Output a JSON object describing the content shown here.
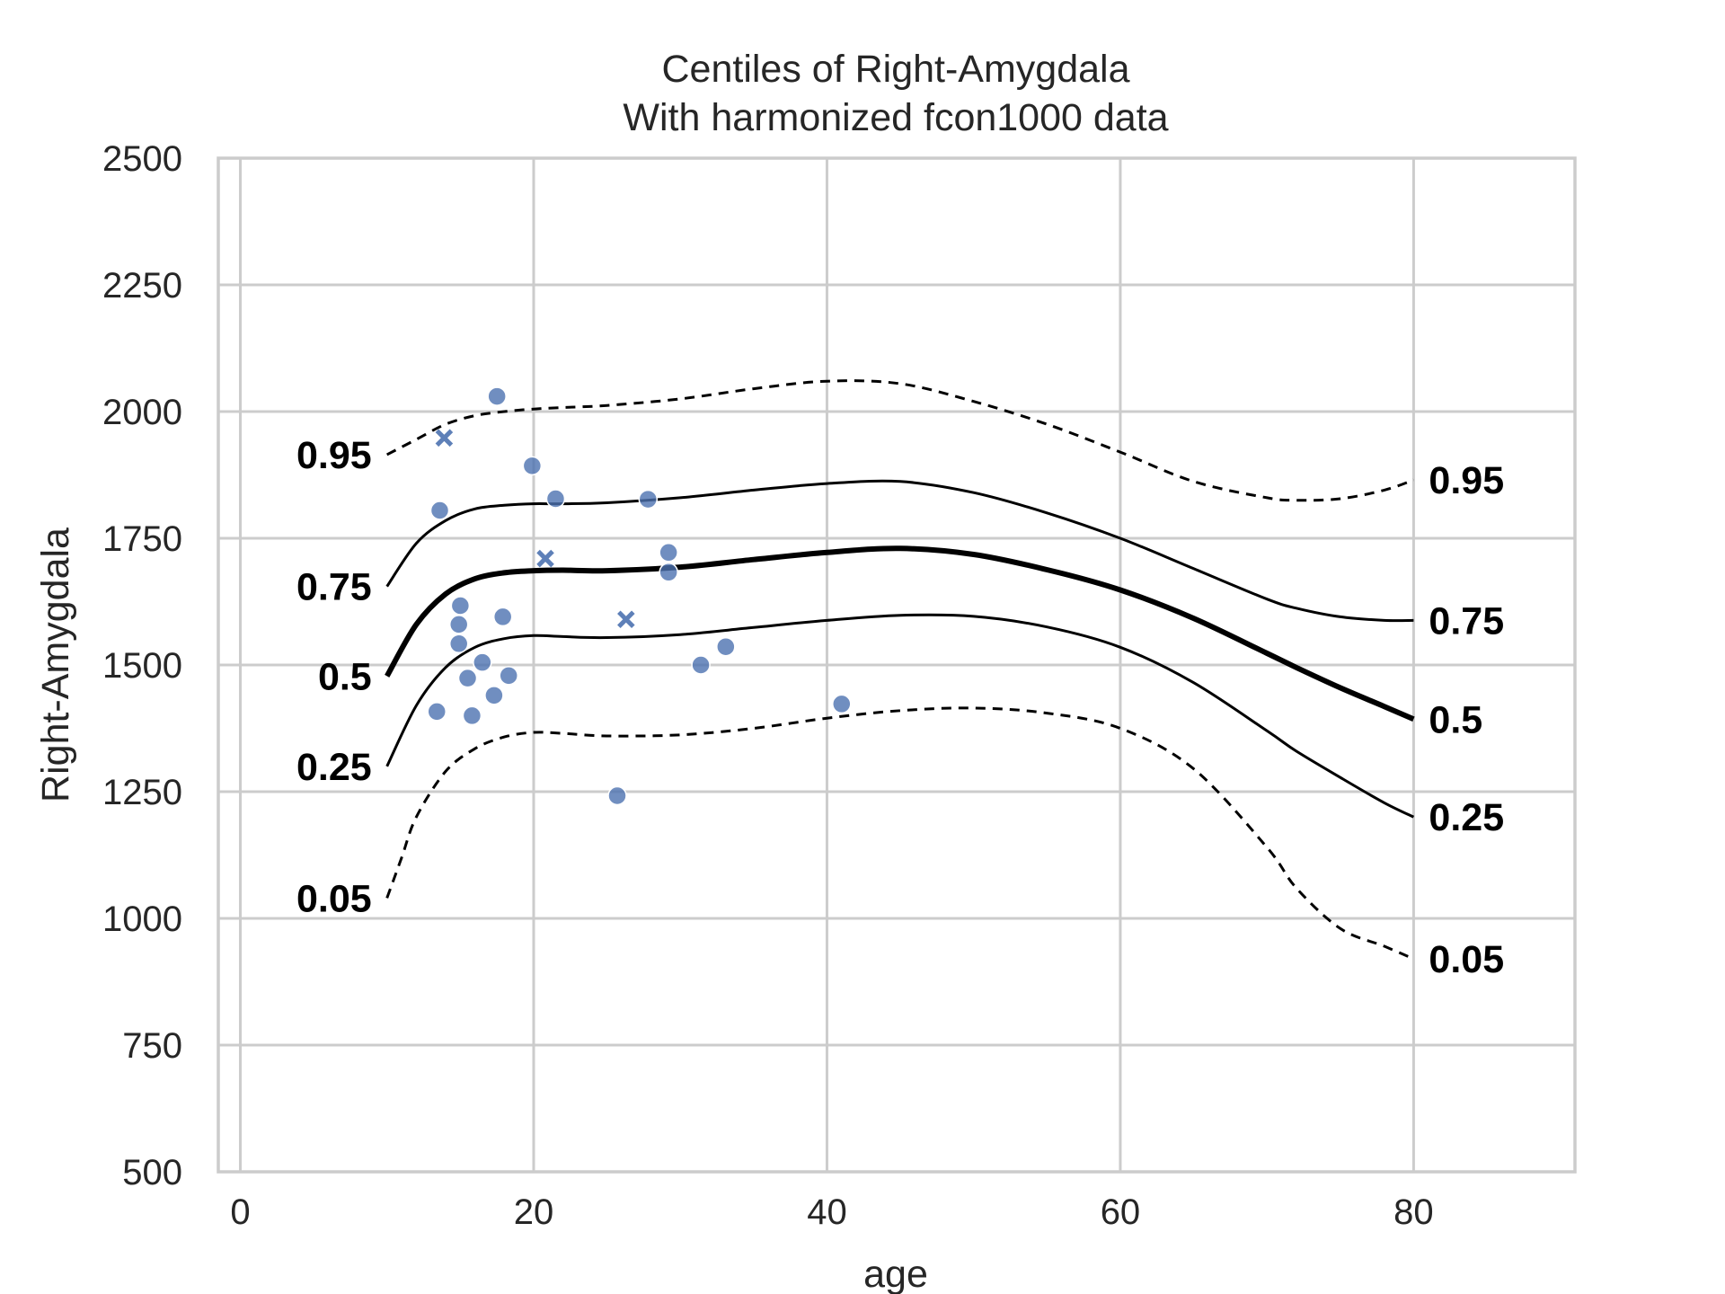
{
  "chart_data": {
    "type": "scatter",
    "title": "Centiles of Right-Amygdala",
    "subtitle": "With harmonized fcon1000 data",
    "xlabel": "age",
    "ylabel": "Right-Amygdala",
    "xlim": [
      -1.5,
      91
    ],
    "ylim": [
      500,
      2500
    ],
    "x_ticks": [
      "0",
      "20",
      "40",
      "60",
      "80"
    ],
    "x_tick_values": [
      0,
      20,
      40,
      60,
      80
    ],
    "y_ticks": [
      "500",
      "750",
      "1000",
      "1250",
      "1500",
      "1750",
      "2000",
      "2250",
      "2500"
    ],
    "y_tick_values": [
      500,
      750,
      1000,
      1250,
      1500,
      1750,
      2000,
      2250,
      2500
    ],
    "grid": true,
    "point_color": "#4c72b0",
    "line_color": "#000000",
    "centiles": [
      {
        "label": "0.95",
        "style": "dashed",
        "x": [
          10,
          12,
          14,
          16,
          18,
          20,
          22,
          25,
          30,
          35,
          40,
          45,
          50,
          55,
          60,
          65,
          70,
          72,
          75,
          78,
          80
        ],
        "y": [
          1915,
          1945,
          1975,
          1992,
          2000,
          2005,
          2008,
          2012,
          2025,
          2045,
          2060,
          2055,
          2020,
          1975,
          1920,
          1862,
          1830,
          1825,
          1828,
          1845,
          1865
        ]
      },
      {
        "label": "0.75",
        "style": "solid",
        "x": [
          10,
          12,
          14,
          16,
          18,
          20,
          22,
          25,
          30,
          35,
          40,
          45,
          50,
          55,
          60,
          65,
          70,
          72,
          75,
          78,
          80
        ],
        "y": [
          1655,
          1740,
          1785,
          1808,
          1815,
          1818,
          1818,
          1820,
          1830,
          1845,
          1858,
          1862,
          1840,
          1800,
          1750,
          1690,
          1630,
          1612,
          1595,
          1588,
          1588
        ]
      },
      {
        "label": "0.5",
        "style": "thick",
        "x": [
          10,
          12,
          14,
          16,
          18,
          20,
          22,
          25,
          30,
          35,
          40,
          45,
          50,
          55,
          60,
          65,
          70,
          72,
          75,
          78,
          80
        ],
        "y": [
          1478,
          1580,
          1640,
          1670,
          1682,
          1686,
          1687,
          1686,
          1693,
          1708,
          1722,
          1730,
          1718,
          1688,
          1648,
          1592,
          1523,
          1495,
          1455,
          1418,
          1393
        ]
      },
      {
        "label": "0.25",
        "style": "solid",
        "x": [
          10,
          12,
          14,
          16,
          18,
          20,
          22,
          25,
          30,
          35,
          40,
          45,
          50,
          55,
          60,
          65,
          70,
          72,
          75,
          78,
          80
        ],
        "y": [
          1300,
          1420,
          1495,
          1535,
          1552,
          1558,
          1556,
          1554,
          1560,
          1574,
          1588,
          1598,
          1596,
          1575,
          1535,
          1465,
          1370,
          1330,
          1278,
          1228,
          1200
        ]
      },
      {
        "label": "0.05",
        "style": "dashed",
        "x": [
          10,
          11,
          12,
          14,
          16,
          18,
          20,
          22,
          25,
          30,
          35,
          40,
          45,
          50,
          55,
          60,
          65,
          70,
          72,
          75,
          78,
          80
        ],
        "y": [
          1040,
          1120,
          1200,
          1290,
          1335,
          1358,
          1367,
          1365,
          1360,
          1362,
          1375,
          1395,
          1410,
          1415,
          1405,
          1375,
          1295,
          1140,
          1060,
          980,
          945,
          920
        ]
      }
    ],
    "left_labels": [
      "0.95",
      "0.75",
      "0.5",
      "0.25",
      "0.05"
    ],
    "right_labels": [
      "0.95",
      "0.75",
      "0.5",
      "0.25",
      "0.05"
    ],
    "points_circle": [
      {
        "x": 17.5,
        "y": 2030
      },
      {
        "x": 19.9,
        "y": 1893
      },
      {
        "x": 13.6,
        "y": 1805
      },
      {
        "x": 21.5,
        "y": 1828
      },
      {
        "x": 27.8,
        "y": 1827
      },
      {
        "x": 29.2,
        "y": 1722
      },
      {
        "x": 29.2,
        "y": 1683
      },
      {
        "x": 15.0,
        "y": 1617
      },
      {
        "x": 14.9,
        "y": 1580
      },
      {
        "x": 17.9,
        "y": 1595
      },
      {
        "x": 14.9,
        "y": 1542
      },
      {
        "x": 16.5,
        "y": 1505
      },
      {
        "x": 15.5,
        "y": 1474
      },
      {
        "x": 18.3,
        "y": 1479
      },
      {
        "x": 33.1,
        "y": 1536
      },
      {
        "x": 31.4,
        "y": 1500
      },
      {
        "x": 13.4,
        "y": 1408
      },
      {
        "x": 15.8,
        "y": 1400
      },
      {
        "x": 17.3,
        "y": 1440
      },
      {
        "x": 41.0,
        "y": 1423
      },
      {
        "x": 25.7,
        "y": 1242
      }
    ],
    "points_cross": [
      {
        "x": 13.9,
        "y": 1948
      },
      {
        "x": 20.8,
        "y": 1710
      },
      {
        "x": 26.3,
        "y": 1590
      }
    ]
  }
}
